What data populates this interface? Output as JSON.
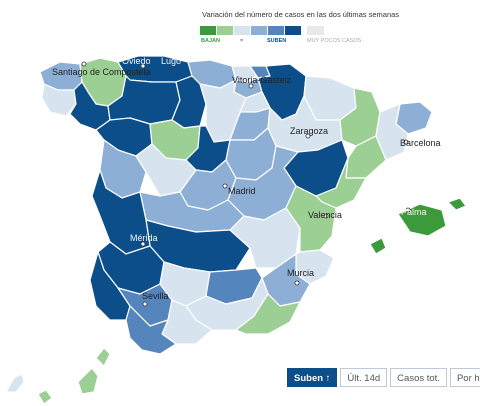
{
  "legend": {
    "title": "Variación del número de casos en las dos últimas semanas",
    "bajan_label": "BAJAN",
    "suben_label": "SUBEN",
    "muy_pocos_label": "MUY POCOS CASOS",
    "mid_label": "=",
    "colors": [
      "#3b9b3b",
      "#9ccf93",
      "#d7e3ef",
      "#8dafd6",
      "#5585bd",
      "#0b4e8a"
    ],
    "muy_pocos_color": "#e9e9e9",
    "bajan_color": "#3b9b3b",
    "suben_color": "#0b4e8a",
    "muy_pocos_text_color": "#aaaaaa"
  },
  "cities": [
    {
      "key": "oviedo",
      "label": "Oviedo"
    },
    {
      "key": "lugo",
      "label": "Lugo"
    },
    {
      "key": "santiago",
      "label": "Santiago de Compostela"
    },
    {
      "key": "vitoria",
      "label": "Vitoria-Gasteiz"
    },
    {
      "key": "zaragoza",
      "label": "Zaragoza"
    },
    {
      "key": "barcelona",
      "label": "Barcelona"
    },
    {
      "key": "madrid",
      "label": "Madrid"
    },
    {
      "key": "valencia",
      "label": "Valencia"
    },
    {
      "key": "palma",
      "label": "Palma"
    },
    {
      "key": "merida",
      "label": "Mérida"
    },
    {
      "key": "murcia",
      "label": "Murcia"
    },
    {
      "key": "sevilla",
      "label": "Sevilla"
    }
  ],
  "buttons": [
    {
      "label": "Suben ↑",
      "active": true
    },
    {
      "label": "Últ. 14d",
      "active": false
    },
    {
      "label": "Casos tot.",
      "active": false
    },
    {
      "label": "Por hab.",
      "active": false
    }
  ],
  "colors": {
    "sea": "#ffffff",
    "border": "#ffffff",
    "dark_blue": "#0b4e8a",
    "mid_blue": "#5585bd",
    "light_blue": "#8dafd6",
    "pale_blue": "#d7e3ef",
    "light_green": "#9ccf93",
    "green": "#3b9b3b"
  }
}
